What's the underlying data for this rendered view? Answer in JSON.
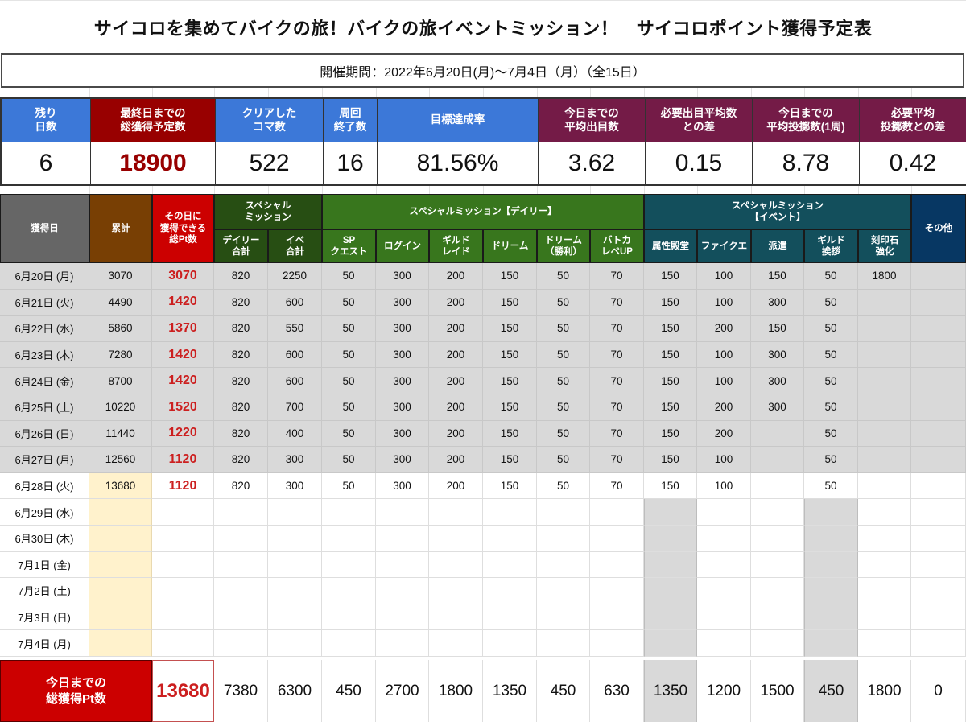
{
  "title": "サイコロを集めてバイクの旅！バイクの旅イベントミッション！　サイコロポイント獲得予定表",
  "period": "開催期間：2022年6月20日(月)〜7月4日（月）（全15日）",
  "colors": {
    "kpi_blue": "#3c78d8",
    "kpi_darkred": "#980000",
    "kpi_plum": "#741b47",
    "hdr_gray": "#666666",
    "hdr_brown": "#783f04",
    "hdr_red": "#cc0000",
    "hdr_darkgreen": "#274e13",
    "hdr_green": "#38761d",
    "hdr_teal": "#134f5c",
    "hdr_navy": "#073763",
    "row_filled": "#d9d9d9",
    "cumulative_highlight": "#fff2cc",
    "daily_points_text": "#cc1f1f"
  },
  "kpi": [
    {
      "label": "残り\n日数",
      "value": "6",
      "color": "blue"
    },
    {
      "label": "最終日までの\n総獲得予定数",
      "value": "18900",
      "color": "darkred"
    },
    {
      "label": "クリアした\nコマ数",
      "value": "522",
      "color": "blue"
    },
    {
      "label": "周回\n終了数",
      "value": "16",
      "color": "blue"
    },
    {
      "label": "目標達成率",
      "value": "81.56%",
      "color": "blue"
    },
    {
      "label": "今日までの\n平均出目数",
      "value": "3.62",
      "color": "plum"
    },
    {
      "label": "必要出目平均数\nとの差",
      "value": "0.15",
      "color": "plum"
    },
    {
      "label": "今日までの\n平均投擲数(1周)",
      "value": "8.78",
      "color": "plum"
    },
    {
      "label": "必要平均\n投擲数との差",
      "value": "0.42",
      "color": "plum"
    }
  ],
  "table": {
    "headers": {
      "date": "獲得日",
      "cumulative": "累計",
      "daily_total": "その日に\n獲得できる\n総Pt数",
      "group_special": "スペシャル\nミッション",
      "group_daily": "スペシャルミッション【デイリー】",
      "group_event": "スペシャルミッション\n【イベント】",
      "other": "その他",
      "sub": [
        "デイリー\n合計",
        "イベ\n合計",
        "SP\nクエスト",
        "ログイン",
        "ギルド\nレイド",
        "ドリーム",
        "ドリーム\n（勝利）",
        "バトカ\nレベUP",
        "属性殿堂",
        "ファイクエ",
        "派遣",
        "ギルド\n挨拶",
        "刻印石\n強化"
      ]
    },
    "rows": [
      {
        "date": "6月20日 (月)",
        "cumulative": "3070",
        "daily": "3070",
        "cells": [
          "820",
          "2250",
          "50",
          "300",
          "200",
          "150",
          "50",
          "70",
          "150",
          "100",
          "150",
          "50",
          "1800",
          ""
        ]
      },
      {
        "date": "6月21日 (火)",
        "cumulative": "4490",
        "daily": "1420",
        "cells": [
          "820",
          "600",
          "50",
          "300",
          "200",
          "150",
          "50",
          "70",
          "150",
          "100",
          "300",
          "50",
          "",
          ""
        ]
      },
      {
        "date": "6月22日 (水)",
        "cumulative": "5860",
        "daily": "1370",
        "cells": [
          "820",
          "550",
          "50",
          "300",
          "200",
          "150",
          "50",
          "70",
          "150",
          "200",
          "150",
          "50",
          "",
          ""
        ]
      },
      {
        "date": "6月23日 (木)",
        "cumulative": "7280",
        "daily": "1420",
        "cells": [
          "820",
          "600",
          "50",
          "300",
          "200",
          "150",
          "50",
          "70",
          "150",
          "100",
          "300",
          "50",
          "",
          ""
        ]
      },
      {
        "date": "6月24日 (金)",
        "cumulative": "8700",
        "daily": "1420",
        "cells": [
          "820",
          "600",
          "50",
          "300",
          "200",
          "150",
          "50",
          "70",
          "150",
          "100",
          "300",
          "50",
          "",
          ""
        ]
      },
      {
        "date": "6月25日 (土)",
        "cumulative": "10220",
        "daily": "1520",
        "cells": [
          "820",
          "700",
          "50",
          "300",
          "200",
          "150",
          "50",
          "70",
          "150",
          "200",
          "300",
          "50",
          "",
          ""
        ]
      },
      {
        "date": "6月26日 (日)",
        "cumulative": "11440",
        "daily": "1220",
        "cells": [
          "820",
          "400",
          "50",
          "300",
          "200",
          "150",
          "50",
          "70",
          "150",
          "200",
          "",
          "50",
          "",
          ""
        ]
      },
      {
        "date": "6月27日 (月)",
        "cumulative": "12560",
        "daily": "1120",
        "cells": [
          "820",
          "300",
          "50",
          "300",
          "200",
          "150",
          "50",
          "70",
          "150",
          "100",
          "",
          "50",
          "",
          ""
        ]
      },
      {
        "date": "6月28日 (火)",
        "cumulative": "13680",
        "daily": "1120",
        "cells": [
          "820",
          "300",
          "50",
          "300",
          "200",
          "150",
          "50",
          "70",
          "150",
          "100",
          "",
          "50",
          "",
          ""
        ]
      },
      {
        "date": "6月29日 (水)",
        "cumulative": "",
        "daily": "",
        "cells": [
          "",
          "",
          "",
          "",
          "",
          "",
          "",
          "",
          "",
          "",
          "",
          "",
          "",
          ""
        ]
      },
      {
        "date": "6月30日 (木)",
        "cumulative": "",
        "daily": "",
        "cells": [
          "",
          "",
          "",
          "",
          "",
          "",
          "",
          "",
          "",
          "",
          "",
          "",
          "",
          ""
        ]
      },
      {
        "date": "7月1日 (金)",
        "cumulative": "",
        "daily": "",
        "cells": [
          "",
          "",
          "",
          "",
          "",
          "",
          "",
          "",
          "",
          "",
          "",
          "",
          "",
          ""
        ]
      },
      {
        "date": "7月2日 (土)",
        "cumulative": "",
        "daily": "",
        "cells": [
          "",
          "",
          "",
          "",
          "",
          "",
          "",
          "",
          "",
          "",
          "",
          "",
          "",
          ""
        ]
      },
      {
        "date": "7月3日 (日)",
        "cumulative": "",
        "daily": "",
        "cells": [
          "",
          "",
          "",
          "",
          "",
          "",
          "",
          "",
          "",
          "",
          "",
          "",
          "",
          ""
        ]
      },
      {
        "date": "7月4日 (月)",
        "cumulative": "",
        "daily": "",
        "cells": [
          "",
          "",
          "",
          "",
          "",
          "",
          "",
          "",
          "",
          "",
          "",
          "",
          "",
          ""
        ]
      }
    ],
    "total": {
      "label": "今日までの\n総獲得Pt数",
      "grand": "13680",
      "cells": [
        "7380",
        "6300",
        "450",
        "2700",
        "1800",
        "1350",
        "450",
        "630",
        "1350",
        "1200",
        "1500",
        "450",
        "1800",
        "0"
      ]
    }
  }
}
